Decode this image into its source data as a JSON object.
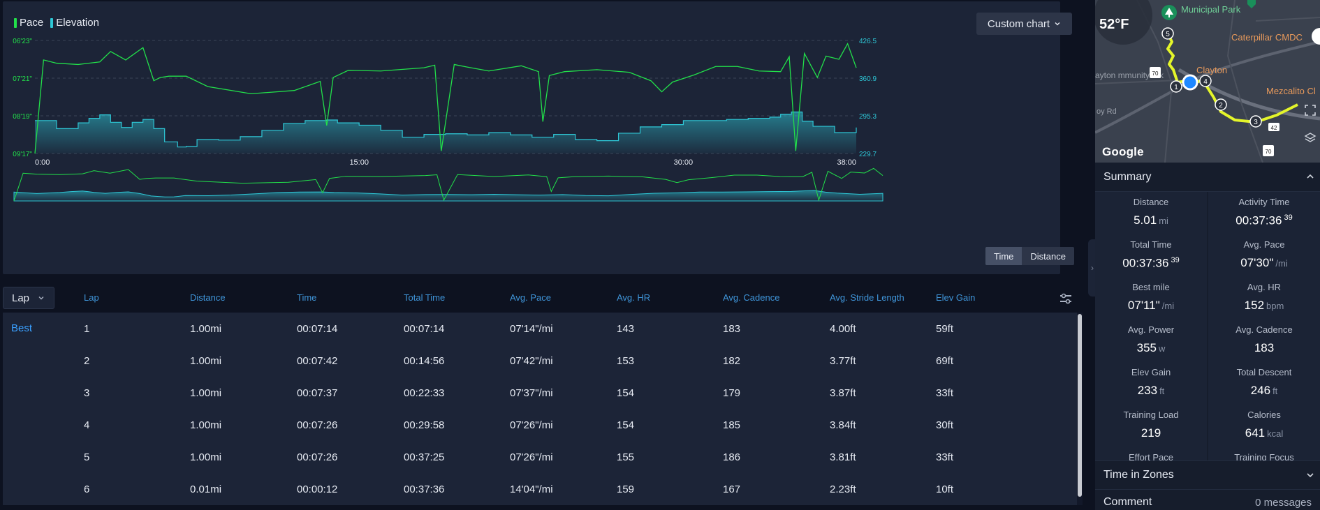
{
  "chart": {
    "legend": [
      {
        "label": "Pace",
        "color": "#22e04a"
      },
      {
        "label": "Elevation",
        "color": "#2ec7d6"
      }
    ],
    "custom_chart_label": "Custom chart",
    "toggle": {
      "time_label": "Time",
      "distance_label": "Distance",
      "active": "time"
    }
  },
  "chart_data": {
    "type": "line",
    "x_axis": {
      "ticks": [
        "0:00",
        "15:00",
        "30:00",
        "38:00"
      ],
      "tick_values_min": [
        0,
        15,
        30,
        38
      ],
      "range_min": [
        0,
        38
      ]
    },
    "y_left": {
      "label": "Pace",
      "ticks": [
        "06'23\"",
        "07'21\"",
        "08'19\"",
        "09'17\""
      ],
      "range_sec_per_mi": [
        383,
        557
      ],
      "inverted": true
    },
    "y_right": {
      "label": "Elevation",
      "ticks": [
        "426.5",
        "360.9",
        "295.3",
        "229.7"
      ],
      "range": [
        229.7,
        426.5
      ]
    },
    "series": [
      {
        "name": "Pace",
        "color": "#22e04a",
        "x_min": [
          0,
          0.4,
          1,
          2,
          3,
          3.5,
          4.2,
          5,
          5.5,
          5.8,
          6.2,
          7,
          8,
          10,
          12,
          13.2,
          13.5,
          13.8,
          14.5,
          16,
          18,
          18.5,
          18.8,
          19.4,
          20,
          21,
          22.5,
          23.3,
          23.5,
          23.8,
          24.5,
          26,
          27.5,
          28.5,
          29,
          29.5,
          30.5,
          31.5,
          32.5,
          33.5,
          34.5,
          34.9,
          35.2,
          35.6,
          36.2,
          36.6,
          37.2,
          37.6,
          38
        ],
        "pace_sec": [
          557,
          413,
          418,
          420,
          416,
          400,
          413,
          394,
          445,
          440,
          438,
          438,
          454,
          465,
          460,
          446,
          514,
          440,
          429,
          430,
          425,
          421,
          553,
          420,
          424,
          430,
          422,
          431,
          508,
          437,
          431,
          428,
          432,
          445,
          462,
          447,
          436,
          423,
          423,
          430,
          431,
          408,
          553,
          403,
          440,
          407,
          412,
          388,
          425
        ]
      },
      {
        "name": "Elevation",
        "color": "#2ec7d6",
        "x_min": [
          0,
          1,
          2,
          2.5,
          3,
          3.5,
          4,
          4.5,
          5,
          5.5,
          6,
          6.6,
          7,
          7.5,
          8.5,
          9.5,
          10.5,
          11.5,
          12.5,
          13.5,
          14,
          15,
          16,
          17,
          18,
          19,
          20,
          21,
          22,
          23,
          24,
          25,
          26,
          27,
          28,
          29,
          30,
          31,
          32,
          33,
          34,
          34.5,
          35,
          35.5,
          36,
          37,
          38
        ],
        "values": [
          287,
          273,
          283,
          291,
          297,
          284,
          275,
          284,
          289,
          273,
          250,
          241,
          242,
          254,
          253,
          259,
          270,
          282,
          287,
          288,
          283,
          279,
          270,
          258,
          263,
          264,
          262,
          266,
          262,
          258,
          263,
          254,
          252,
          265,
          276,
          280,
          287,
          287,
          289,
          291,
          293,
          298,
          302,
          286,
          277,
          266,
          275
        ]
      }
    ]
  },
  "laps": {
    "dropdown_label": "Lap",
    "best_label": "Best",
    "columns": [
      "Lap",
      "Distance",
      "Time",
      "Total Time",
      "Avg. Pace",
      "Avg. HR",
      "Avg. Cadence",
      "Avg. Stride Length",
      "Elev Gain"
    ],
    "rows": [
      [
        "1",
        "1.00mi",
        "00:07:14",
        "00:07:14",
        "07'14\"/mi",
        "143",
        "183",
        "4.00ft",
        "59ft"
      ],
      [
        "2",
        "1.00mi",
        "00:07:42",
        "00:14:56",
        "07'42\"/mi",
        "153",
        "182",
        "3.77ft",
        "69ft"
      ],
      [
        "3",
        "1.00mi",
        "00:07:37",
        "00:22:33",
        "07'37\"/mi",
        "154",
        "179",
        "3.87ft",
        "33ft"
      ],
      [
        "4",
        "1.00mi",
        "00:07:26",
        "00:29:58",
        "07'26\"/mi",
        "154",
        "185",
        "3.84ft",
        "30ft"
      ],
      [
        "5",
        "1.00mi",
        "00:07:26",
        "00:37:25",
        "07'26\"/mi",
        "155",
        "186",
        "3.81ft",
        "33ft"
      ],
      [
        "6",
        "0.01mi",
        "00:00:12",
        "00:37:36",
        "14'04\"/mi",
        "159",
        "167",
        "2.23ft",
        "10ft"
      ]
    ]
  },
  "map": {
    "temperature": "52°F",
    "attribution": "Google",
    "labels": {
      "park": "Municipal Park",
      "caterpillar": "Caterpillar CMDC",
      "clayton": "Clayton",
      "community": "ayton mmunity ark",
      "mezcalito": "Mezcalito Cl",
      "road": "oy Rd"
    },
    "markers": [
      "1",
      "2",
      "3",
      "4",
      "5"
    ],
    "shields": [
      "70",
      "42",
      "70"
    ],
    "accent": "#e4f52a"
  },
  "summary": {
    "title": "Summary",
    "stats": [
      {
        "label": "Distance",
        "value": "5.01",
        "unit": "mi",
        "sup": ""
      },
      {
        "label": "Activity Time",
        "value": "00:37:36",
        "unit": "",
        "sup": "39"
      },
      {
        "label": "Total Time",
        "value": "00:37:36",
        "unit": "",
        "sup": "39"
      },
      {
        "label": "Avg. Pace",
        "value": "07'30\"",
        "unit": "/mi",
        "sup": ""
      },
      {
        "label": "Best mile",
        "value": "07'11\"",
        "unit": "/mi",
        "sup": ""
      },
      {
        "label": "Avg. HR",
        "value": "152",
        "unit": "bpm",
        "sup": ""
      },
      {
        "label": "Avg. Power",
        "value": "355",
        "unit": "w",
        "sup": ""
      },
      {
        "label": "Avg. Cadence",
        "value": "183",
        "unit": "",
        "sup": ""
      },
      {
        "label": "Elev Gain",
        "value": "233",
        "unit": "ft",
        "sup": ""
      },
      {
        "label": "Total Descent",
        "value": "246",
        "unit": "ft",
        "sup": ""
      },
      {
        "label": "Training Load",
        "value": "219",
        "unit": "",
        "sup": ""
      },
      {
        "label": "Calories",
        "value": "641",
        "unit": "kcal",
        "sup": ""
      },
      {
        "label": "Effort Pace",
        "value": "",
        "unit": "",
        "sup": ""
      },
      {
        "label": "Training Focus",
        "value": "",
        "unit": "",
        "sup": ""
      }
    ]
  },
  "time_in_zones": {
    "title": "Time in Zones"
  },
  "comment": {
    "title": "Comment",
    "count": "0 messages"
  }
}
